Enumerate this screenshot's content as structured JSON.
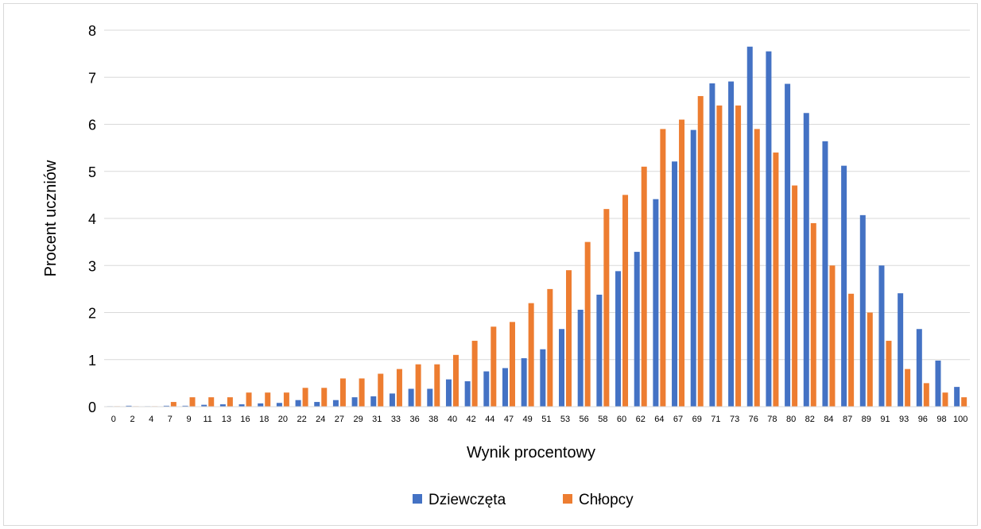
{
  "chart_data": {
    "type": "bar",
    "xlabel": "Wynik procentowy",
    "ylabel": "Procent uczniów",
    "ylim": [
      0,
      8
    ],
    "y_ticks": [
      "0",
      "1",
      "2",
      "3",
      "4",
      "5",
      "6",
      "7",
      "8"
    ],
    "grid": "horizontal",
    "legend_position": "bottom",
    "categories": [
      "0",
      "2",
      "4",
      "7",
      "9",
      "11",
      "13",
      "16",
      "18",
      "20",
      "22",
      "24",
      "27",
      "29",
      "31",
      "33",
      "36",
      "38",
      "40",
      "42",
      "44",
      "47",
      "49",
      "51",
      "53",
      "56",
      "58",
      "60",
      "62",
      "64",
      "67",
      "69",
      "71",
      "73",
      "76",
      "78",
      "80",
      "82",
      "84",
      "87",
      "89",
      "91",
      "93",
      "96",
      "98",
      "100"
    ],
    "series": [
      {
        "name": "Dziewczęta",
        "color": "#4472C4",
        "values": [
          0.01,
          0.02,
          0.01,
          0.02,
          0.02,
          0.04,
          0.05,
          0.05,
          0.07,
          0.08,
          0.14,
          0.1,
          0.14,
          0.2,
          0.22,
          0.28,
          0.38,
          0.38,
          0.58,
          0.54,
          0.75,
          0.82,
          1.03,
          1.22,
          1.65,
          2.06,
          2.38,
          2.88,
          3.29,
          4.41,
          5.21,
          5.88,
          6.87,
          6.91,
          7.65,
          7.55,
          6.86,
          6.24,
          5.64,
          5.12,
          4.07,
          3.0,
          2.41,
          1.65,
          0.98,
          0.42
        ]
      },
      {
        "name": "Chłopcy",
        "color": "#ED7D31",
        "values": [
          0.01,
          0.01,
          0.01,
          0.1,
          0.2,
          0.2,
          0.2,
          0.3,
          0.3,
          0.3,
          0.4,
          0.4,
          0.6,
          0.6,
          0.7,
          0.8,
          0.9,
          0.9,
          1.1,
          1.4,
          1.7,
          1.8,
          2.2,
          2.5,
          2.9,
          3.5,
          4.2,
          4.5,
          5.1,
          5.9,
          6.1,
          6.6,
          6.4,
          6.4,
          5.9,
          5.4,
          4.7,
          3.9,
          3.0,
          2.4,
          2.0,
          1.4,
          0.8,
          0.5,
          0.3,
          0.2
        ]
      }
    ]
  }
}
